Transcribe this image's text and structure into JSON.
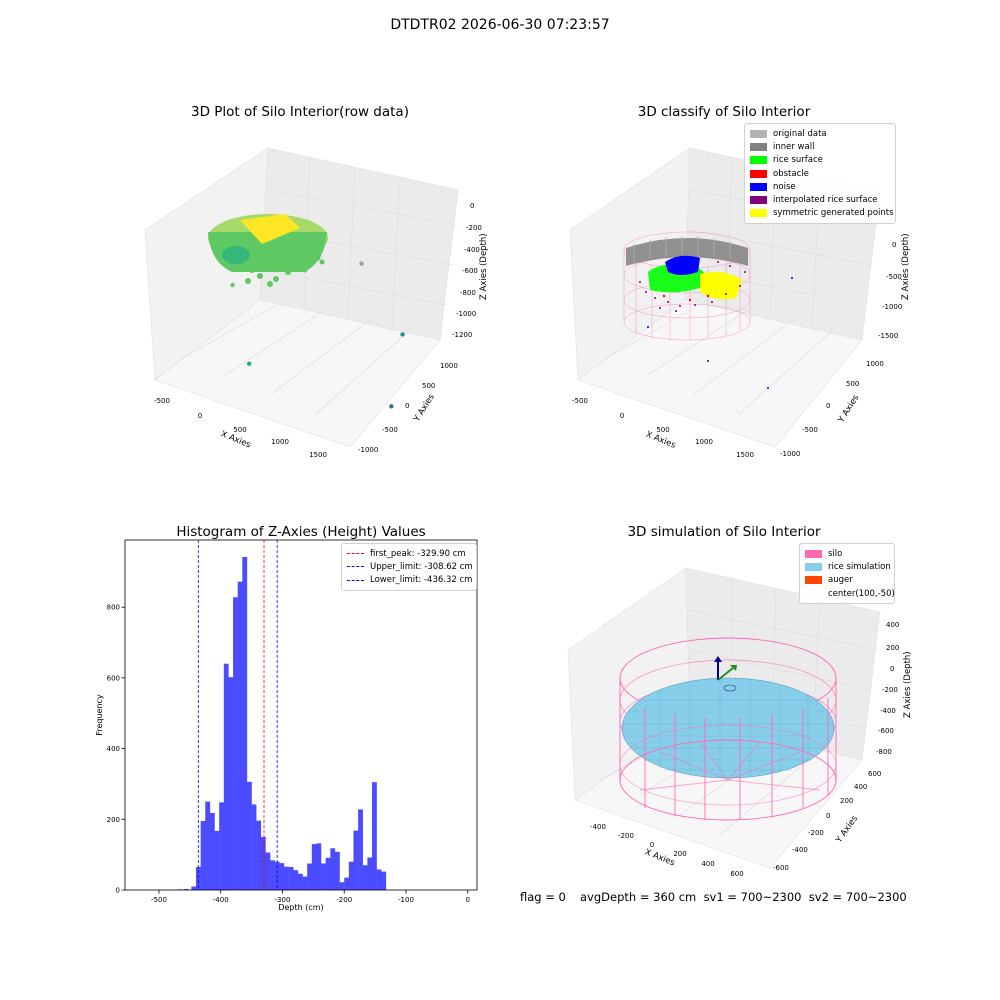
{
  "figure_title": "DTDTR02 2026-06-30 07:23:57",
  "footer": {
    "flag": "flag = 0",
    "stats": "avgDepth = 360 cm  sv1 = 700~2300  sv2 = 700~2300"
  },
  "colors": {
    "original_data": "#b3b3b3",
    "inner_wall": "#808080",
    "rice_surface": "#00ff00",
    "obstacle": "#ff0000",
    "noise": "#0000ff",
    "interpolated_rice_surface": "#800080",
    "symmetric_generated_points": "#ffff00",
    "silo": "#ff69b4",
    "rice_simulation": "#87ceeb",
    "auger": "#ff4500",
    "histogram_bars": "#4b4bff",
    "first_peak_line": "#ff0000",
    "limit_lines": "#0000ff"
  },
  "chart_data": [
    {
      "type": "scatter",
      "kind": "3d",
      "title": "3D Plot of Silo Interior(row data)",
      "xlabel": "X Axies",
      "ylabel": "Y Axies",
      "zlabel": "Z Axies (Depth)",
      "x_ticks": [
        "-500",
        "0",
        "500",
        "1000",
        "1500"
      ],
      "y_ticks": [
        "-1000",
        "-500",
        "0",
        "500",
        "1000"
      ],
      "z_ticks": [
        "0",
        "-200",
        "-400",
        "-600",
        "-800",
        "-1000",
        "-1200"
      ],
      "xlim": [
        -650,
        1700
      ],
      "ylim": [
        -1100,
        1100
      ],
      "zlim": [
        -1300,
        50
      ],
      "outlier_points": [
        [
          1650,
          -50,
          -1200
        ],
        [
          1550,
          320,
          -700
        ],
        [
          300,
          -700,
          -950
        ],
        [
          -400,
          150,
          -700
        ],
        [
          850,
          650,
          -350
        ]
      ],
      "grid": true
    },
    {
      "type": "scatter",
      "kind": "3d",
      "title": "3D classify of Silo Interior",
      "xlabel": "X Axies",
      "ylabel": "Y Axies",
      "zlabel": "Z Axies (Depth)",
      "x_ticks": [
        "-500",
        "0",
        "500",
        "1000",
        "1500"
      ],
      "y_ticks": [
        "-1000",
        "-500",
        "0",
        "500",
        "1000"
      ],
      "z_ticks": [
        "0",
        "-500",
        "-1000",
        "-1500"
      ],
      "legend": [
        "original data",
        "inner wall",
        "rice surface",
        "obstacle",
        "noise",
        "interpolated rice surface",
        "symmetric generated points"
      ],
      "legend_position": "upper right",
      "grid": true
    },
    {
      "type": "bar",
      "kind": "histogram",
      "title": "Histogram of Z-Axies (Height) Values",
      "xlabel": "Depth (cm)",
      "ylabel": "Frequency",
      "x_ticks": [
        -500,
        -400,
        -300,
        -200,
        -100,
        0
      ],
      "y_ticks": [
        0,
        200,
        400,
        600,
        800
      ],
      "xlim": [
        -555,
        15
      ],
      "ylim": [
        0,
        990
      ],
      "bin_start": -447.5,
      "bin_width": 7.5,
      "values": [
        10,
        65,
        195,
        250,
        218,
        167,
        248,
        640,
        602,
        828,
        872,
        942,
        306,
        242,
        196,
        150,
        106,
        84,
        80,
        76,
        66,
        65,
        56,
        46,
        38,
        75,
        130,
        132,
        75,
        91,
        118,
        108,
        22,
        35,
        80,
        168,
        228,
        70,
        92,
        305,
        58,
        52
      ],
      "small_bins": [
        {
          "x": -495,
          "v": 1
        },
        {
          "x": -480,
          "v": 1
        },
        {
          "x": -470,
          "v": 2
        },
        {
          "x": -460,
          "v": 3
        }
      ],
      "legend": [
        {
          "label": "first_peak: -329.90 cm",
          "value": -329.9,
          "color": "#ff0000"
        },
        {
          "label": "Upper_limit: -308.62 cm",
          "value": -308.62,
          "color": "#0000ff"
        },
        {
          "label": "Lower_limit: -436.32 cm",
          "value": -436.32,
          "color": "#0000ff"
        }
      ],
      "legend_position": "upper right",
      "grid": false
    },
    {
      "type": "scatter",
      "kind": "3d",
      "title": "3D simulation of Silo Interior",
      "xlabel": "X Axies",
      "ylabel": "Y Axies",
      "zlabel": "Z Axies (Depth)",
      "x_ticks": [
        "-400",
        "-200",
        "0",
        "200",
        "400",
        "600"
      ],
      "y_ticks": [
        "-600",
        "-400",
        "-200",
        "0",
        "200",
        "400",
        "600"
      ],
      "z_ticks": [
        "400",
        "200",
        "0",
        "-200",
        "-400",
        "-600",
        "-800"
      ],
      "legend": [
        "silo",
        "rice simulation",
        "auger",
        "center(100,-50)"
      ],
      "legend_position": "upper right",
      "grid": true
    }
  ]
}
